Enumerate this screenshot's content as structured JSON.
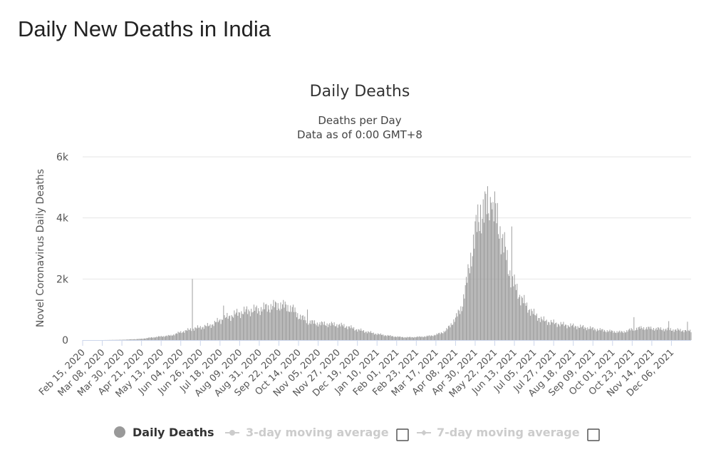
{
  "page": {
    "title": "Daily New Deaths in India"
  },
  "chart_data": {
    "type": "bar",
    "title": "Daily Deaths",
    "subtitle_lines": [
      "Deaths per Day",
      "Data as of 0:00 GMT+8"
    ],
    "ylabel": "Novel Coronavirus Daily Deaths",
    "xlabel": "",
    "ylim": [
      0,
      6000
    ],
    "yticks": [
      0,
      2000,
      4000,
      6000
    ],
    "ytick_labels": [
      "0",
      "2k",
      "4k",
      "6k"
    ],
    "grid": true,
    "x_start": "2020-02-15",
    "x_end": "2021-12-28",
    "x_tick_labels": [
      "Feb 15, 2020",
      "Mar 08, 2020",
      "Mar 30, 2020",
      "Apr 21, 2020",
      "May 13, 2020",
      "Jun 04, 2020",
      "Jun 26, 2020",
      "Jul 18, 2020",
      "Aug 09, 2020",
      "Aug 31, 2020",
      "Sep 22, 2020",
      "Oct 14, 2020",
      "Nov 05, 2020",
      "Nov 27, 2020",
      "Dec 19, 2020",
      "Jan 10, 2021",
      "Feb 01, 2021",
      "Feb 23, 2021",
      "Mar 17, 2021",
      "Apr 08, 2021",
      "Apr 30, 2021",
      "May 22, 2021",
      "Jun 13, 2021",
      "Jul 05, 2021",
      "Jul 27, 2021",
      "Aug 18, 2021",
      "Sep 09, 2021",
      "Oct 01, 2021",
      "Oct 23, 2021",
      "Nov 14, 2021",
      "Dec 06, 2021"
    ],
    "bar_color": "#999999",
    "series": [
      {
        "name": "Daily Deaths",
        "points": [
          [
            "2020-02-15",
            0
          ],
          [
            "2020-03-08",
            0
          ],
          [
            "2020-03-30",
            10
          ],
          [
            "2020-04-10",
            25
          ],
          [
            "2020-04-21",
            40
          ],
          [
            "2020-05-01",
            80
          ],
          [
            "2020-05-13",
            120
          ],
          [
            "2020-05-24",
            150
          ],
          [
            "2020-06-04",
            260
          ],
          [
            "2020-06-15",
            350
          ],
          [
            "2020-06-26",
            420
          ],
          [
            "2020-07-07",
            480
          ],
          [
            "2020-07-18",
            650
          ],
          [
            "2020-07-29",
            780
          ],
          [
            "2020-08-09",
            900
          ],
          [
            "2020-08-20",
            970
          ],
          [
            "2020-08-31",
            1000
          ],
          [
            "2020-09-10",
            1080
          ],
          [
            "2020-09-22",
            1150
          ],
          [
            "2020-10-01",
            1100
          ],
          [
            "2020-10-08",
            1000
          ],
          [
            "2020-10-14",
            800
          ],
          [
            "2020-10-25",
            600
          ],
          [
            "2020-11-05",
            540
          ],
          [
            "2020-11-16",
            520
          ],
          [
            "2020-11-27",
            500
          ],
          [
            "2020-12-08",
            440
          ],
          [
            "2020-12-19",
            340
          ],
          [
            "2020-12-30",
            270
          ],
          [
            "2021-01-10",
            200
          ],
          [
            "2021-01-21",
            150
          ],
          [
            "2021-02-01",
            110
          ],
          [
            "2021-02-12",
            90
          ],
          [
            "2021-02-23",
            100
          ],
          [
            "2021-03-06",
            120
          ],
          [
            "2021-03-17",
            170
          ],
          [
            "2021-03-28",
            300
          ],
          [
            "2021-04-08",
            700
          ],
          [
            "2021-04-15",
            1100
          ],
          [
            "2021-04-20",
            1800
          ],
          [
            "2021-04-25",
            2700
          ],
          [
            "2021-04-30",
            3500
          ],
          [
            "2021-05-06",
            4200
          ],
          [
            "2021-05-12",
            4300
          ],
          [
            "2021-05-18",
            4500
          ],
          [
            "2021-05-22",
            4200
          ],
          [
            "2021-05-27",
            3700
          ],
          [
            "2021-06-02",
            3000
          ],
          [
            "2021-06-07",
            2300
          ],
          [
            "2021-06-13",
            1800
          ],
          [
            "2021-06-20",
            1400
          ],
          [
            "2021-06-27",
            1100
          ],
          [
            "2021-07-05",
            850
          ],
          [
            "2021-07-15",
            650
          ],
          [
            "2021-07-27",
            560
          ],
          [
            "2021-08-07",
            500
          ],
          [
            "2021-08-18",
            460
          ],
          [
            "2021-08-29",
            420
          ],
          [
            "2021-09-09",
            370
          ],
          [
            "2021-09-20",
            320
          ],
          [
            "2021-10-01",
            280
          ],
          [
            "2021-10-12",
            260
          ],
          [
            "2021-10-23",
            350
          ],
          [
            "2021-11-03",
            400
          ],
          [
            "2021-11-14",
            380
          ],
          [
            "2021-11-25",
            360
          ],
          [
            "2021-12-06",
            340
          ],
          [
            "2021-12-28",
            300
          ]
        ],
        "spikes": [
          [
            "2020-06-17",
            2000
          ],
          [
            "2020-07-22",
            1130
          ],
          [
            "2020-10-24",
            1000
          ],
          [
            "2021-05-18",
            4500
          ],
          [
            "2021-05-20",
            4520
          ],
          [
            "2021-06-10",
            3720
          ],
          [
            "2021-10-25",
            750
          ],
          [
            "2021-12-03",
            620
          ],
          [
            "2021-12-24",
            600
          ]
        ]
      },
      {
        "name": "3-day moving average"
      },
      {
        "name": "7-day moving average"
      }
    ],
    "legend": {
      "placement": "bottom",
      "items": [
        "Daily Deaths",
        "3-day moving average",
        "7-day moving average"
      ]
    }
  }
}
